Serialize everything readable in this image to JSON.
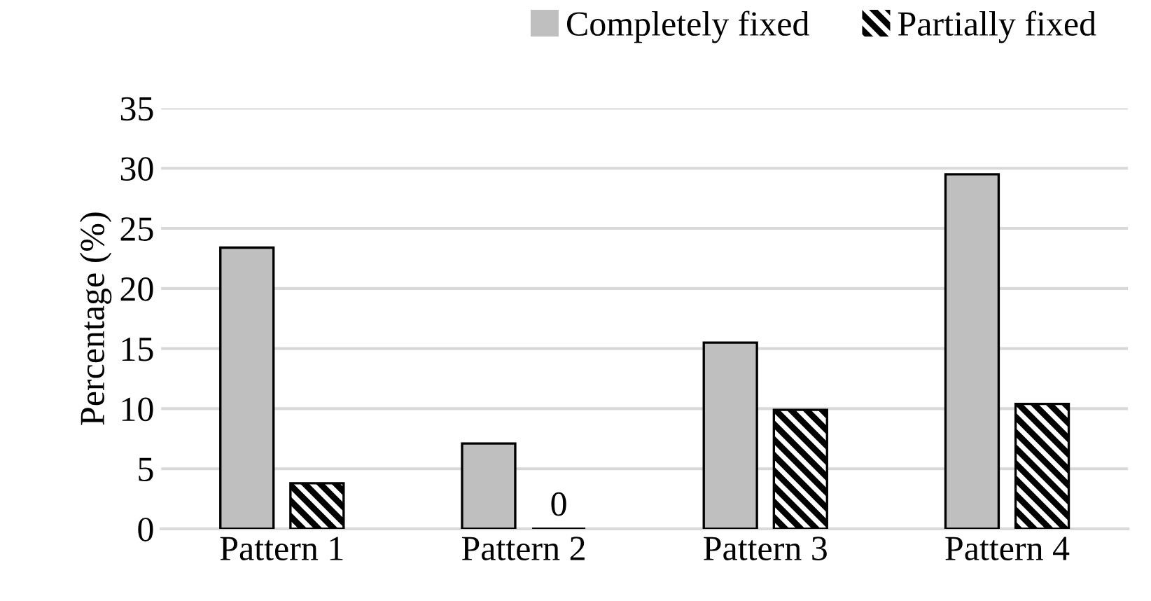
{
  "chart_data": {
    "type": "bar",
    "ylabel": "Percentage (%)",
    "categories": [
      "Pattern 1",
      "Pattern 2",
      "Pattern 3",
      "Pattern 4"
    ],
    "series": [
      {
        "name": "Completely fixed",
        "color": "#bfbfbf",
        "values": [
          23.4,
          7.1,
          15.5,
          29.5
        ]
      },
      {
        "name": "Partially fixed",
        "color": "#000000",
        "values": [
          3.8,
          0,
          9.9,
          10.4
        ],
        "value_labels": [
          null,
          "0",
          null,
          null
        ]
      }
    ],
    "ylim": [
      0,
      35
    ],
    "yticks": [
      0,
      5,
      10,
      15,
      20,
      25,
      30,
      35
    ],
    "grid": "y",
    "legend": "top right"
  }
}
